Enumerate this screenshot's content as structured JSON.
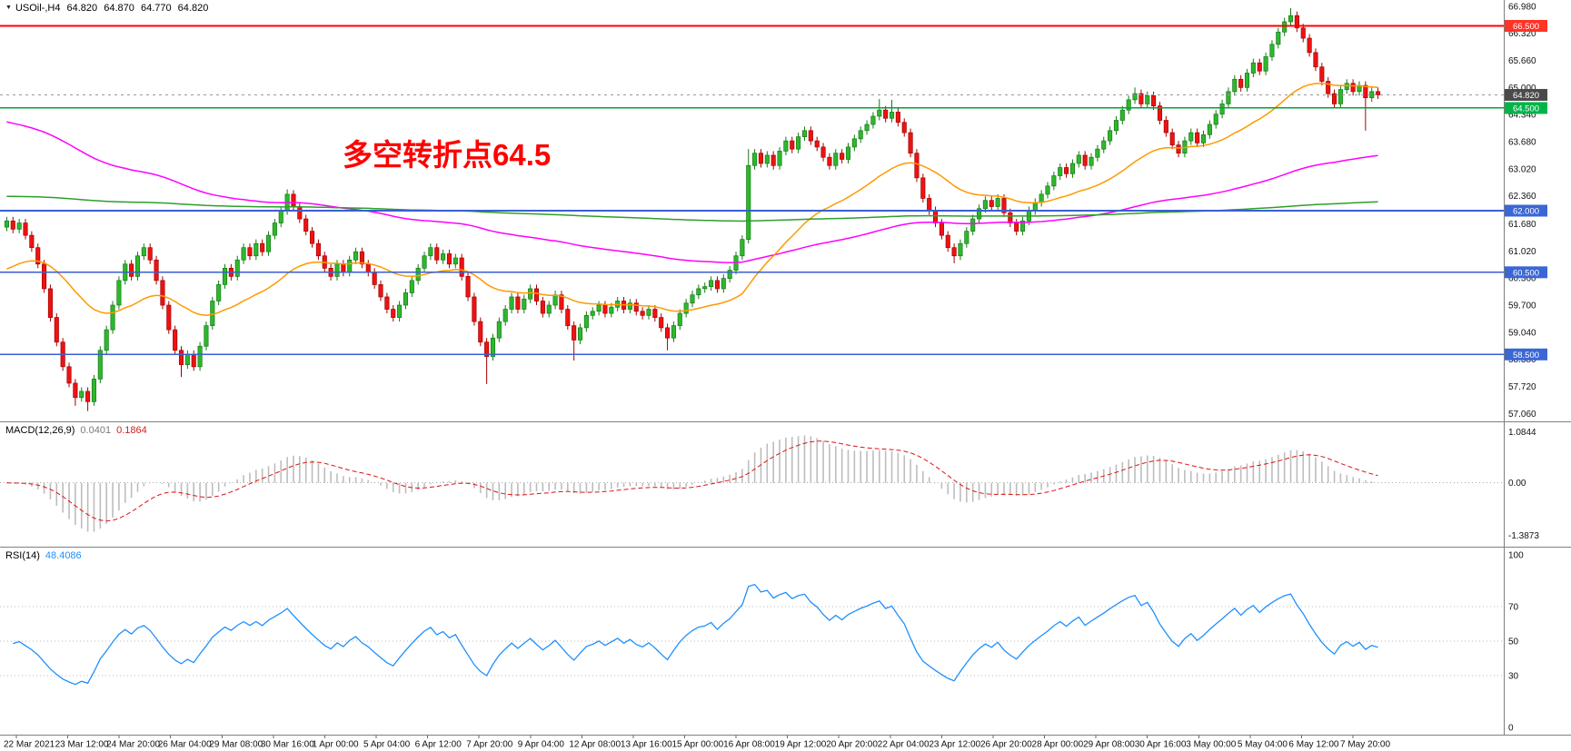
{
  "header": {
    "symbol_period": "USOil-,H4",
    "open": "64.820",
    "high": "64.870",
    "low": "64.770",
    "close": "64.820"
  },
  "annotation": {
    "text": "多空转折点64.5",
    "color": "#ff0000"
  },
  "price_axis": {
    "ticks": [
      "66.980",
      "66.320",
      "65.660",
      "65.000",
      "64.340",
      "63.680",
      "63.020",
      "62.360",
      "61.680",
      "61.020",
      "60.360",
      "59.700",
      "59.040",
      "58.380",
      "57.720",
      "57.060"
    ]
  },
  "levels": [
    {
      "label": "66.500",
      "price": 66.5,
      "line_color": "#ff0000",
      "badge_color": "#ff3326"
    },
    {
      "label": "64.500",
      "price": 64.5,
      "line_color": "#00a23c",
      "badge_color": "#00b44a"
    },
    {
      "label": "62.000",
      "price": 62.0,
      "line_color": "#3a5fd0",
      "badge_color": "#3a66d6"
    },
    {
      "label": "60.500",
      "price": 60.5,
      "line_color": "#3a5fd0",
      "badge_color": "#3a66d6"
    },
    {
      "label": "58.500",
      "price": 58.5,
      "line_color": "#3a5fd0",
      "badge_color": "#3a66d6"
    }
  ],
  "current_price": {
    "label": "64.820",
    "price": 64.82,
    "line_color": "#999999",
    "badge_color": "#4a4a4a"
  },
  "macd_panel": {
    "label": "MACD(12,26,9)",
    "value_main": "0.0401",
    "value_signal": "0.1864",
    "axis_labels": [
      "1.0844",
      "0.00",
      "-1.3873"
    ],
    "histogram_color": "#bdbdbd",
    "signal_color": "#dd1111"
  },
  "rsi_panel": {
    "label": "RSI(14)",
    "value": "48.4086",
    "axis_labels": [
      100,
      70,
      50,
      30,
      0
    ],
    "level_lines": [
      70,
      50,
      30
    ],
    "line_color": "#1e90ff"
  },
  "time_axis": {
    "labels": [
      "22 Mar 2021",
      "23 Mar 12:00",
      "24 Mar 20:00",
      "26 Mar 04:00",
      "29 Mar 08:00",
      "30 Mar 16:00",
      "1 Apr 00:00",
      "5 Apr 04:00",
      "6 Apr 12:00",
      "7 Apr 20:00",
      "9 Apr 04:00",
      "12 Apr 08:00",
      "13 Apr 16:00",
      "15 Apr 00:00",
      "16 Apr 08:00",
      "19 Apr 12:00",
      "20 Apr 20:00",
      "22 Apr 04:00",
      "23 Apr 12:00",
      "26 Apr 20:00",
      "28 Apr 00:00",
      "29 Apr 08:00",
      "30 Apr 16:00",
      "3 May 00:00",
      "5 May 04:00",
      "6 May 12:00",
      "7 May 20:00"
    ]
  },
  "chart_data": {
    "type": "candlestick",
    "symbol": "USOil",
    "timeframe": "H4",
    "title": "USOil-,H4 64.820 64.870 64.770 64.820",
    "ohlc_current": {
      "open": 64.82,
      "high": 64.87,
      "low": 64.77,
      "close": 64.82
    },
    "price_range": [
      56.87,
      67.13
    ],
    "horizontal_levels": [
      66.5,
      64.5,
      62.0,
      60.5,
      58.5
    ],
    "annotation_level": 64.5,
    "first_open": 61.6,
    "default_wick": 0.1,
    "closes": [
      61.75,
      61.55,
      61.7,
      61.4,
      61.1,
      60.7,
      60.1,
      59.4,
      58.8,
      58.2,
      57.8,
      57.45,
      57.6,
      57.35,
      57.9,
      58.6,
      59.1,
      59.7,
      60.3,
      60.7,
      60.4,
      60.9,
      61.1,
      60.8,
      60.3,
      59.7,
      59.1,
      58.6,
      58.25,
      58.5,
      58.2,
      58.7,
      59.2,
      59.8,
      60.2,
      60.6,
      60.4,
      60.8,
      61.1,
      60.9,
      61.2,
      61.0,
      61.4,
      61.7,
      62.0,
      62.4,
      62.1,
      61.8,
      61.5,
      61.2,
      60.9,
      60.6,
      60.4,
      60.7,
      60.5,
      60.8,
      61.0,
      60.7,
      60.5,
      60.2,
      59.9,
      59.6,
      59.4,
      59.7,
      60.0,
      60.3,
      60.6,
      60.9,
      61.1,
      60.8,
      60.95,
      60.7,
      60.85,
      60.4,
      59.9,
      59.3,
      58.8,
      58.45,
      58.9,
      59.3,
      59.6,
      59.9,
      59.6,
      59.85,
      60.1,
      59.8,
      59.5,
      59.7,
      59.95,
      59.6,
      59.2,
      58.85,
      59.15,
      59.45,
      59.55,
      59.7,
      59.5,
      59.65,
      59.8,
      59.6,
      59.75,
      59.55,
      59.45,
      59.6,
      59.4,
      59.15,
      58.9,
      59.2,
      59.5,
      59.75,
      59.95,
      60.1,
      60.15,
      60.3,
      60.1,
      60.35,
      60.55,
      60.9,
      61.3,
      63.1,
      63.4,
      63.15,
      63.35,
      63.1,
      63.45,
      63.7,
      63.5,
      63.8,
      63.95,
      63.7,
      63.55,
      63.3,
      63.1,
      63.4,
      63.25,
      63.55,
      63.75,
      63.95,
      64.1,
      64.3,
      64.45,
      64.25,
      64.4,
      64.15,
      63.9,
      63.4,
      62.8,
      62.3,
      62.0,
      61.7,
      61.4,
      61.1,
      60.9,
      61.2,
      61.5,
      61.8,
      62.05,
      62.25,
      62.1,
      62.3,
      61.95,
      61.7,
      61.5,
      61.75,
      62.0,
      62.2,
      62.4,
      62.6,
      62.85,
      63.05,
      62.9,
      63.15,
      63.35,
      63.1,
      63.3,
      63.5,
      63.7,
      63.95,
      64.2,
      64.45,
      64.7,
      64.85,
      64.6,
      64.8,
      64.55,
      64.2,
      63.9,
      63.6,
      63.4,
      63.7,
      63.9,
      63.65,
      63.85,
      64.1,
      64.35,
      64.6,
      64.9,
      65.2,
      65.0,
      65.35,
      65.6,
      65.4,
      65.75,
      66.05,
      66.35,
      66.6,
      66.75,
      66.45,
      66.2,
      65.85,
      65.5,
      65.15,
      64.85,
      64.6,
      64.95,
      65.1,
      64.9,
      65.05,
      64.75,
      64.9,
      64.82
    ],
    "wick_overrides": {
      "11": {
        "low": 57.25
      },
      "13": {
        "low": 57.12
      },
      "28": {
        "low": 57.95
      },
      "45": {
        "high": 62.52
      },
      "77": {
        "low": 57.78
      },
      "91": {
        "low": 58.35
      },
      "106": {
        "low": 58.6
      },
      "119": {
        "high": 63.5
      },
      "140": {
        "high": 64.72
      },
      "142": {
        "high": 64.7
      },
      "152": {
        "low": 60.72
      },
      "181": {
        "high": 65.0
      },
      "206": {
        "high": 66.93
      },
      "218": {
        "low": 63.95
      }
    },
    "candle_up_fill": "#2db82d",
    "candle_up_stroke": "#157a15",
    "candle_down_fill": "#ee1212",
    "candle_down_stroke": "#a30000",
    "moving_averages": [
      {
        "name": "ma-slow-magenta",
        "color": "#ff00ff",
        "period": 140,
        "seed": 64.2
      },
      {
        "name": "ma-medium-orange",
        "color": "#ff9900",
        "period": 30,
        "seed": 60.5
      },
      {
        "name": "ma-long-green",
        "color": "#2ca02c",
        "period": 800,
        "seed": 62.35
      }
    ],
    "indicators": {
      "macd": {
        "fast": 12,
        "slow": 26,
        "signal": 9
      },
      "rsi": {
        "period": 14
      }
    }
  }
}
